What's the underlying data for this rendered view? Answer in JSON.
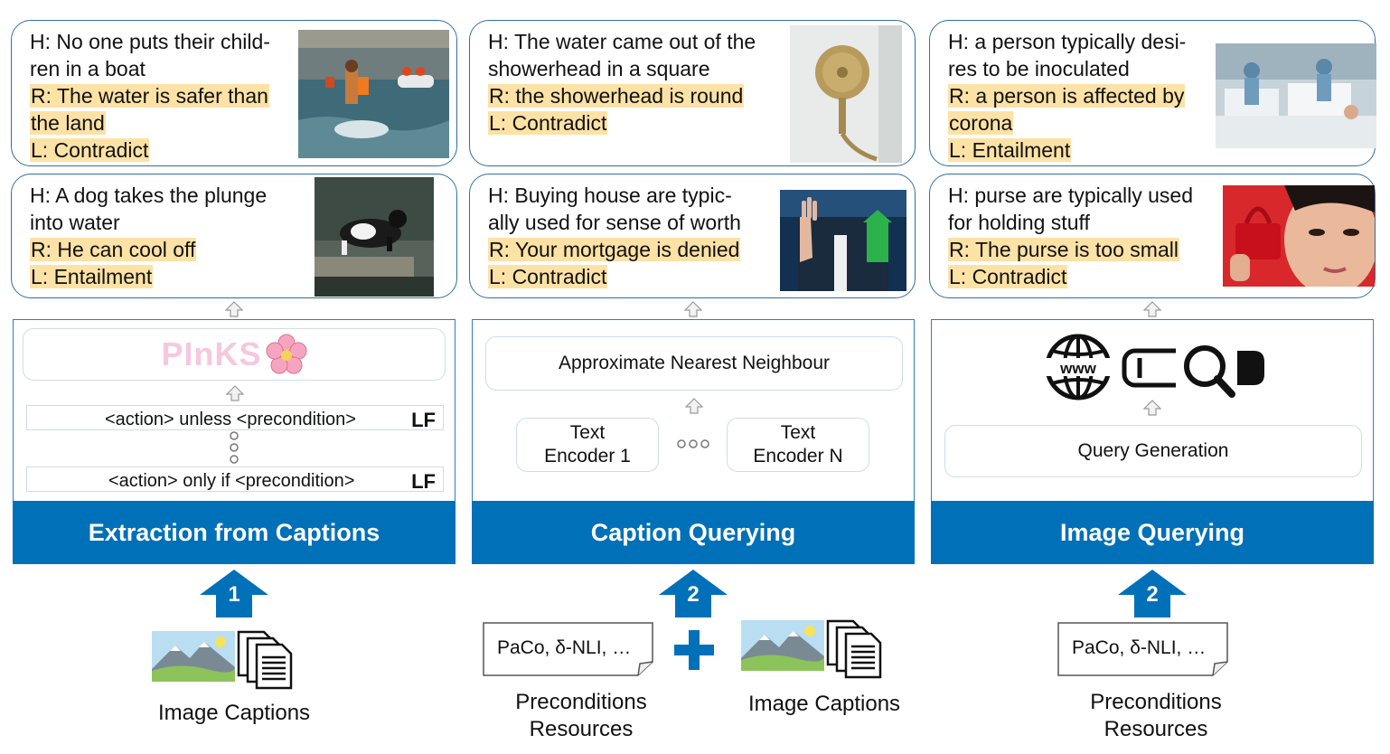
{
  "colors": {
    "band": "#0070b8",
    "highlight": "#fde2a6",
    "card_border": "#2e6fa3"
  },
  "examples": {
    "col1_top": {
      "h1": "H: No one puts their child-",
      "h2": "ren in a boat",
      "r1": "R: The water is safer than",
      "r2": "the land",
      "l": "L: Contradict"
    },
    "col1_bottom": {
      "h1": "H: A dog takes the plunge",
      "h2": "into water",
      "r1": "R: He can cool off",
      "l": "L: Entailment"
    },
    "col2_top": {
      "h1": "H: The water came out of the",
      "h2": "showerhead in a square",
      "r1": "R: the showerhead is round",
      "l": "L: Contradict"
    },
    "col2_bottom": {
      "h1": "H: Buying house are typic-",
      "h2": "ally used for sense of worth",
      "r1": "R: Your mortgage is denied",
      "l": "L: Contradict"
    },
    "col3_top": {
      "h1": "H: a person typically desi-",
      "h2": "res to be inoculated",
      "r1": "R: a person is affected by",
      "r2": "corona",
      "l": "L: Entailment"
    },
    "col3_bottom": {
      "h1": "H: purse are typically used",
      "h2": "for holding stuff",
      "r1": "R: The purse is too small",
      "l": "L: Contradict"
    }
  },
  "panels": {
    "extraction": {
      "title": "Extraction from Captions",
      "logo": "PInKS",
      "lf_row1": "<action> unless <precondition>",
      "lf_row2": "<action> only if <precondition>",
      "lf_tag": "LF",
      "step": "1"
    },
    "caption_querying": {
      "title": "Caption Querying",
      "ann": "Approximate Nearest Neighbour",
      "enc1_line1": "Text",
      "enc1_line2": "Encoder 1",
      "encN_line1": "Text",
      "encN_line2": "Encoder N",
      "step": "2"
    },
    "image_querying": {
      "title": "Image Querying",
      "query": "Query Generation",
      "step": "2"
    }
  },
  "inputs": {
    "image_captions_1": "Image Captions",
    "resources_doc_2": "PaCo, δ-NLI, …",
    "resources_label_2_line1": "Preconditions",
    "resources_label_2_line2": "Resources",
    "image_captions_2": "Image Captions",
    "resources_doc_3": "PaCo, δ-NLI, …",
    "resources_label_3_line1": "Preconditions",
    "resources_label_3_line2": "Resources"
  },
  "icons": [
    "flower-icon",
    "www-globe-icon",
    "search-bar-icon",
    "mountain-image-icon",
    "documents-icon",
    "plus-icon",
    "up-arrow-icon"
  ]
}
